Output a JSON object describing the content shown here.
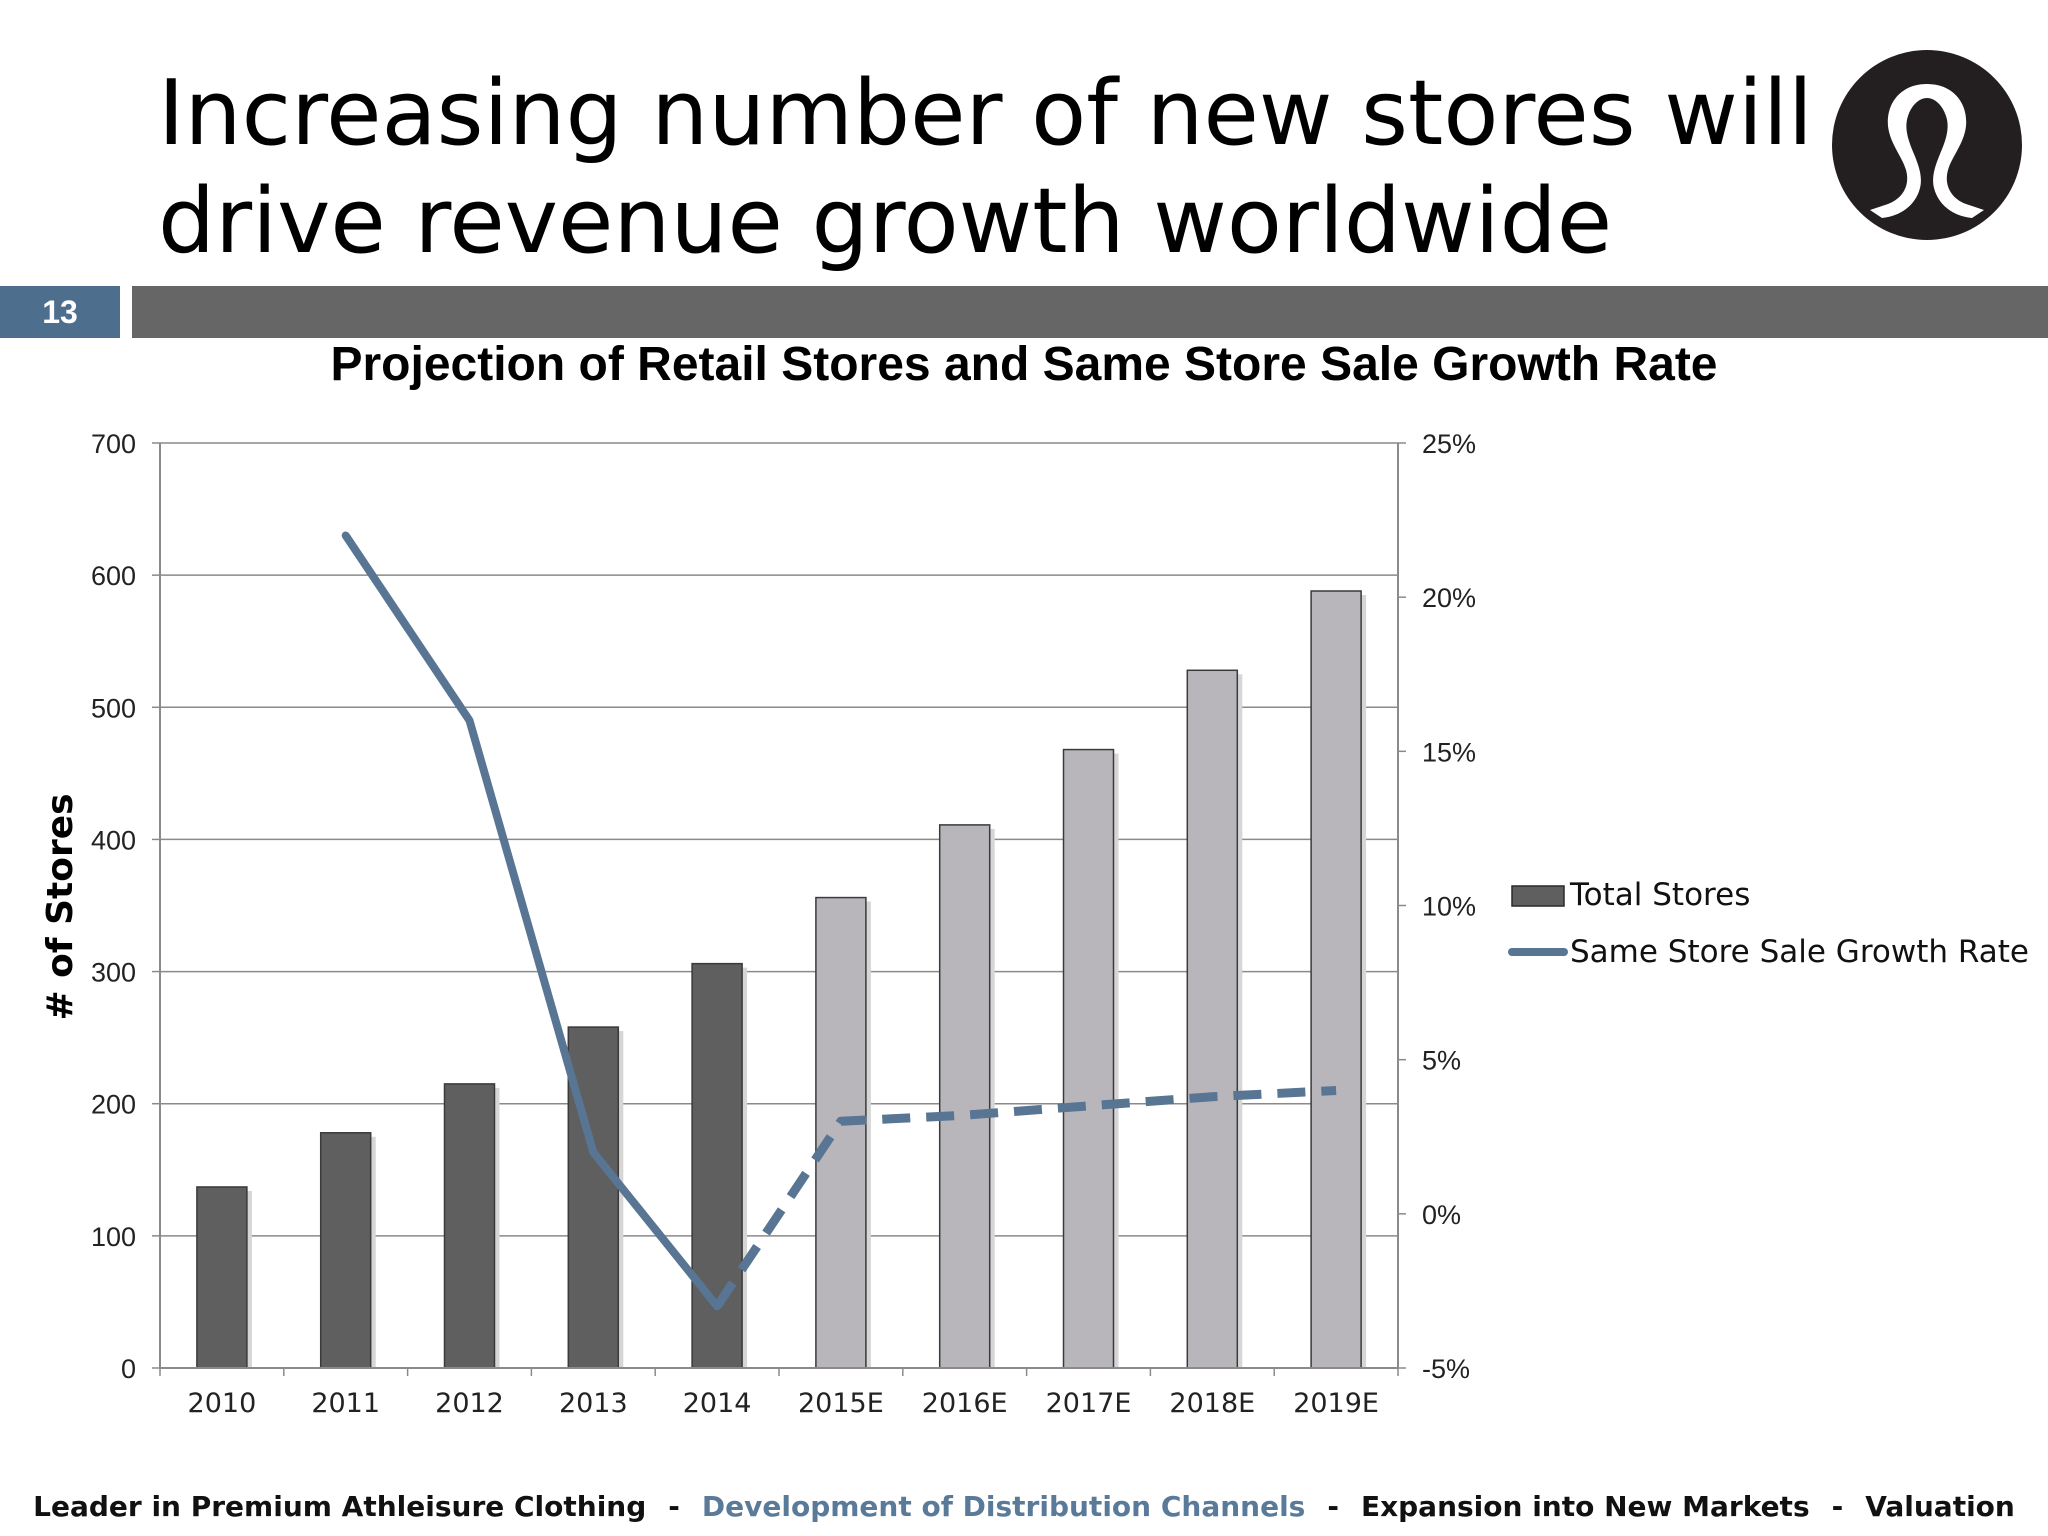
{
  "slide": {
    "title_lines": [
      "Increasing number of new stores will",
      "drive revenue growth worldwide"
    ],
    "page_number": "13",
    "logo_icon": "lululemon-logo-icon"
  },
  "colors": {
    "accent": "#4e6e8e",
    "header_bar": "#666666",
    "bar_actual": "#5f5f5f",
    "bar_projected": "#b8b6bb",
    "line": "#587594",
    "footer_active": "#5a7a9a"
  },
  "chart_data": {
    "type": "bar",
    "title": "Projection of Retail Stores and Same Store Sale Growth Rate",
    "categories": [
      "2010",
      "2011",
      "2012",
      "2013",
      "2014",
      "2015E",
      "2016E",
      "2017E",
      "2018E",
      "2019E"
    ],
    "ylabel": "# of Stores",
    "ylim": [
      0,
      700
    ],
    "yticks": [
      "0",
      "100",
      "200",
      "300",
      "400",
      "500",
      "600",
      "700"
    ],
    "y2lim": [
      -5,
      25
    ],
    "y2ticks": [
      "-5%",
      "0%",
      "5%",
      "10%",
      "15%",
      "20%",
      "25%"
    ],
    "grid": true,
    "legend_position": "right",
    "series": [
      {
        "name": "Total Stores",
        "type": "bar",
        "axis": "left",
        "values": [
          137,
          178,
          215,
          258,
          306,
          356,
          411,
          468,
          528,
          588
        ],
        "projected_from_index": 5
      },
      {
        "name": "Same Store Sale Growth Rate",
        "type": "line",
        "axis": "right",
        "values": [
          null,
          22,
          16,
          2,
          -3,
          3,
          3.2,
          3.5,
          3.8,
          4
        ],
        "dashed_from_index": 4
      }
    ]
  },
  "footer": {
    "items": [
      {
        "label": "Leader in Premium Athleisure Clothing",
        "active": false
      },
      {
        "label": "Development of Distribution Channels",
        "active": true
      },
      {
        "label": "Expansion into New Markets",
        "active": false
      },
      {
        "label": "Valuation",
        "active": false
      }
    ],
    "separator": "-"
  }
}
